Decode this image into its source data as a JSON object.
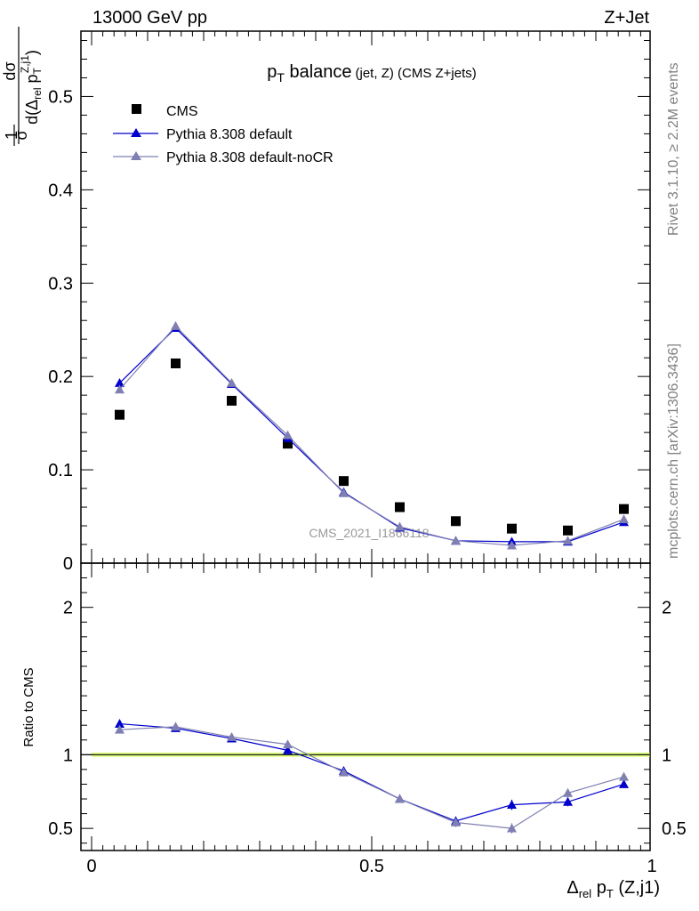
{
  "header": {
    "left": "13000 GeV pp",
    "right": "Z+Jet"
  },
  "side": {
    "rivet": "Rivet 3.1.10, ≥ 2.2M events",
    "mcplots": "mcplots.cern.ch [arXiv:1306.3436]"
  },
  "watermark": "CMS_2021_I1866118",
  "plot_title": {
    "main": "p",
    "sub": "T",
    "rest": " balance",
    "small": "(jet, Z) (CMS Z+jets)"
  },
  "ylabel_main": {
    "frac_num": "1",
    "frac_den": "σ",
    "num": "dσ",
    "den": "d(Δ",
    "den_sub": "rel",
    "den_p": " p",
    "den_psub": "T",
    "den_psup": "Z,j1",
    "den_close": ")"
  },
  "ylabel_ratio": "Ratio to CMS",
  "xlabel": {
    "delta": "Δ",
    "sub": "rel",
    "p": " p",
    "psub": "T",
    "rest": " (Z,j1)"
  },
  "colors": {
    "cms": "#000000",
    "default": "#0000cc",
    "nocr": "#7f7fb2",
    "band": "#ccff33",
    "ref_line": "#000000"
  },
  "chart_data": [
    {
      "type": "line",
      "panel": "main",
      "ylim": [
        0,
        0.57
      ],
      "xlim": [
        0,
        1
      ],
      "y_ticks": [
        "0",
        "0.1",
        "0.2",
        "0.3",
        "0.4",
        "0.5"
      ],
      "legend_position": "top-left",
      "series": [
        {
          "name": "CMS",
          "style": "markers",
          "x": [
            0.05,
            0.15,
            0.25,
            0.35,
            0.45,
            0.55,
            0.65,
            0.75,
            0.85,
            0.95
          ],
          "y": [
            0.159,
            0.214,
            0.174,
            0.128,
            0.088,
            0.06,
            0.045,
            0.037,
            0.035,
            0.058
          ]
        },
        {
          "name": "Pythia 8.308 default",
          "style": "line",
          "x": [
            0.05,
            0.15,
            0.25,
            0.35,
            0.45,
            0.55,
            0.65,
            0.75,
            0.85,
            0.95
          ],
          "y": [
            0.193,
            0.252,
            0.192,
            0.134,
            0.076,
            0.038,
            0.024,
            0.023,
            0.023,
            0.044
          ]
        },
        {
          "name": "Pythia 8.308 default-noCR",
          "style": "line",
          "x": [
            0.05,
            0.15,
            0.25,
            0.35,
            0.45,
            0.55,
            0.65,
            0.75,
            0.85,
            0.95
          ],
          "y": [
            0.186,
            0.254,
            0.193,
            0.137,
            0.075,
            0.039,
            0.024,
            0.019,
            0.024,
            0.047
          ]
        }
      ]
    },
    {
      "type": "line",
      "panel": "ratio",
      "ylim": [
        0.35,
        2.3
      ],
      "xlim": [
        0,
        1
      ],
      "y_ticks": [
        "0.5",
        "1",
        "2"
      ],
      "x_ticks": [
        "0",
        "0.5",
        "1"
      ],
      "series": [
        {
          "name": "Pythia 8.308 default",
          "x": [
            0.05,
            0.15,
            0.25,
            0.35,
            0.45,
            0.55,
            0.65,
            0.75,
            0.85,
            0.95
          ],
          "y": [
            1.21,
            1.18,
            1.11,
            1.03,
            0.89,
            0.7,
            0.55,
            0.66,
            0.68,
            0.8
          ],
          "err": [
            0.01,
            0.01,
            0.01,
            0.01,
            0.015,
            0.02,
            0.03,
            0.035,
            0.03,
            0.02
          ]
        },
        {
          "name": "Pythia 8.308 default-noCR",
          "x": [
            0.05,
            0.15,
            0.25,
            0.35,
            0.45,
            0.55,
            0.65,
            0.75,
            0.85,
            0.95
          ],
          "y": [
            1.17,
            1.19,
            1.12,
            1.07,
            0.88,
            0.7,
            0.54,
            0.5,
            0.74,
            0.85
          ],
          "err": [
            0.01,
            0.01,
            0.01,
            0.01,
            0.015,
            0.02,
            0.03,
            0.035,
            0.03,
            0.02
          ]
        }
      ]
    }
  ]
}
